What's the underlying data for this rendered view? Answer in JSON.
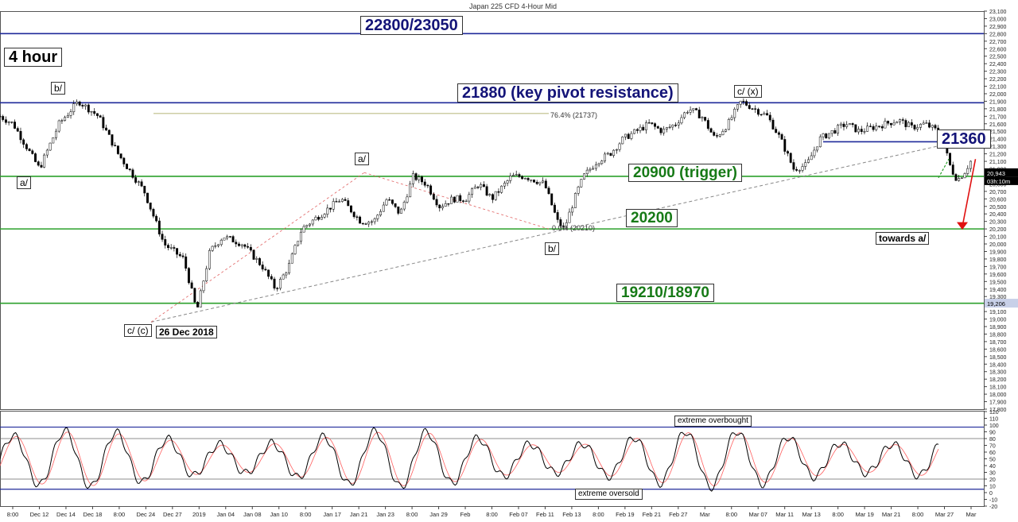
{
  "title": "Japan 225 CFD 4-Hour Mid",
  "timeframe_label": "4 hour",
  "chart_data": [
    {
      "type": "candlestick",
      "title": "Japan 225 CFD 4-Hour Mid",
      "ylim": [
        17800,
        23100
      ],
      "y_ticks": [
        17800,
        17900,
        18000,
        18100,
        18200,
        18300,
        18400,
        18500,
        18600,
        18700,
        18800,
        18900,
        19000,
        19100,
        19200,
        19300,
        19400,
        19500,
        19600,
        19700,
        19800,
        19900,
        20000,
        20100,
        20200,
        20300,
        20400,
        20500,
        20600,
        20700,
        20800,
        20900,
        21000,
        21100,
        21200,
        21300,
        21400,
        21500,
        21600,
        21700,
        21800,
        21900,
        22000,
        22100,
        22200,
        22300,
        22400,
        22500,
        22600,
        22700,
        22800,
        22900,
        23000,
        23100
      ],
      "x_ticks": [
        "8:00",
        "Dec 12",
        "Dec 14",
        "Dec 18",
        "8:00",
        "Dec 24",
        "Dec 27",
        "2019",
        "Jan 04",
        "Jan 08",
        "Jan 10",
        "8:00",
        "Jan 17",
        "Jan 21",
        "Jan 23",
        "8:00",
        "Jan 29",
        "Feb",
        "8:00",
        "Feb 07",
        "Feb 11",
        "Feb 13",
        "8:00",
        "Feb 19",
        "Feb 21",
        "Feb 27",
        "Mar",
        "8:00",
        "Mar 07",
        "Mar 11",
        "Mar 13",
        "8:00",
        "Mar 19",
        "Mar 21",
        "8:00",
        "Mar 27",
        "Mar"
      ],
      "price_path": [
        [
          0,
          21700
        ],
        [
          2,
          21600
        ],
        [
          4,
          21300
        ],
        [
          6,
          21000
        ],
        [
          9,
          21600
        ],
        [
          12,
          21900
        ],
        [
          15,
          21700
        ],
        [
          18,
          21200
        ],
        [
          22,
          20700
        ],
        [
          25,
          20000
        ],
        [
          28,
          19800
        ],
        [
          30,
          19100
        ],
        [
          32,
          19900
        ],
        [
          34,
          20100
        ],
        [
          37,
          20000
        ],
        [
          40,
          19700
        ],
        [
          42,
          19400
        ],
        [
          44,
          19700
        ],
        [
          46,
          20200
        ],
        [
          49,
          20400
        ],
        [
          52,
          20600
        ],
        [
          55,
          20300
        ],
        [
          57,
          20300
        ],
        [
          59,
          20600
        ],
        [
          61,
          20400
        ],
        [
          63,
          20900
        ],
        [
          65,
          20800
        ],
        [
          67,
          20500
        ],
        [
          69,
          20600
        ],
        [
          71,
          20600
        ],
        [
          73,
          20800
        ],
        [
          75,
          20600
        ],
        [
          78,
          20900
        ],
        [
          80,
          20900
        ],
        [
          83,
          20800
        ],
        [
          85,
          20300
        ],
        [
          86,
          20200
        ],
        [
          88,
          20700
        ],
        [
          89,
          20900
        ],
        [
          91,
          21100
        ],
        [
          93,
          21200
        ],
        [
          95,
          21400
        ],
        [
          97,
          21500
        ],
        [
          99,
          21600
        ],
        [
          101,
          21500
        ],
        [
          103,
          21600
        ],
        [
          105,
          21800
        ],
        [
          107,
          21700
        ],
        [
          109,
          21400
        ],
        [
          111,
          21600
        ],
        [
          113,
          21900
        ],
        [
          115,
          21800
        ],
        [
          117,
          21700
        ],
        [
          119,
          21400
        ],
        [
          121,
          21000
        ],
        [
          123,
          21050
        ],
        [
          125,
          21400
        ],
        [
          127,
          21500
        ],
        [
          129,
          21600
        ],
        [
          131,
          21500
        ],
        [
          133,
          21550
        ],
        [
          135,
          21600
        ],
        [
          137,
          21650
        ],
        [
          139,
          21550
        ],
        [
          141,
          21600
        ],
        [
          143,
          21500
        ],
        [
          144,
          21300
        ],
        [
          145,
          21000
        ],
        [
          146,
          20850
        ],
        [
          147,
          20950
        ],
        [
          148,
          21100
        ]
      ],
      "projection": [
        [
          148,
          21130
        ],
        [
          150,
          20200
        ]
      ],
      "levels": [
        {
          "value": 22800,
          "color": "#1f2a9a",
          "label": "22800/23050"
        },
        {
          "value": 21880,
          "color": "#1f2a9a",
          "label": "21880 (key pivot resistance)"
        },
        {
          "value": 20900,
          "color": "#2ca02c",
          "label": "20900 (trigger)"
        },
        {
          "value": 20200,
          "color": "#2ca02c",
          "label": "20200"
        },
        {
          "value": 19210,
          "color": "#2ca02c",
          "label": "19210/18970"
        }
      ],
      "short_level": {
        "value": 21360,
        "label": "21360"
      },
      "fib_label_top": "76.4% (21737)",
      "fib_label_bottom": "0.0% (20210)",
      "current_price": "20,943",
      "countdown": "03h:10m",
      "marker_price": "19,206",
      "wave_labels": [
        "b/",
        "a/",
        "a/",
        "c/ (x)",
        "b/",
        "c/ (c)"
      ],
      "date_label": "26 Dec 2018",
      "target_label": "towards a/"
    },
    {
      "type": "line",
      "ylim": [
        -20,
        120
      ],
      "y_ticks": [
        -20,
        -10,
        0,
        10,
        20,
        30,
        40,
        50,
        60,
        70,
        80,
        90,
        100,
        110,
        120
      ],
      "levels": [
        {
          "value": 97,
          "label": "extreme overbought"
        },
        {
          "value": 80,
          "label": ""
        },
        {
          "value": 20,
          "label": ""
        },
        {
          "value": 5,
          "label": "extreme oversold"
        }
      ],
      "series": [
        {
          "name": "",
          "color": "#000000"
        },
        {
          "name": "",
          "color": "#ff6060"
        }
      ]
    }
  ]
}
